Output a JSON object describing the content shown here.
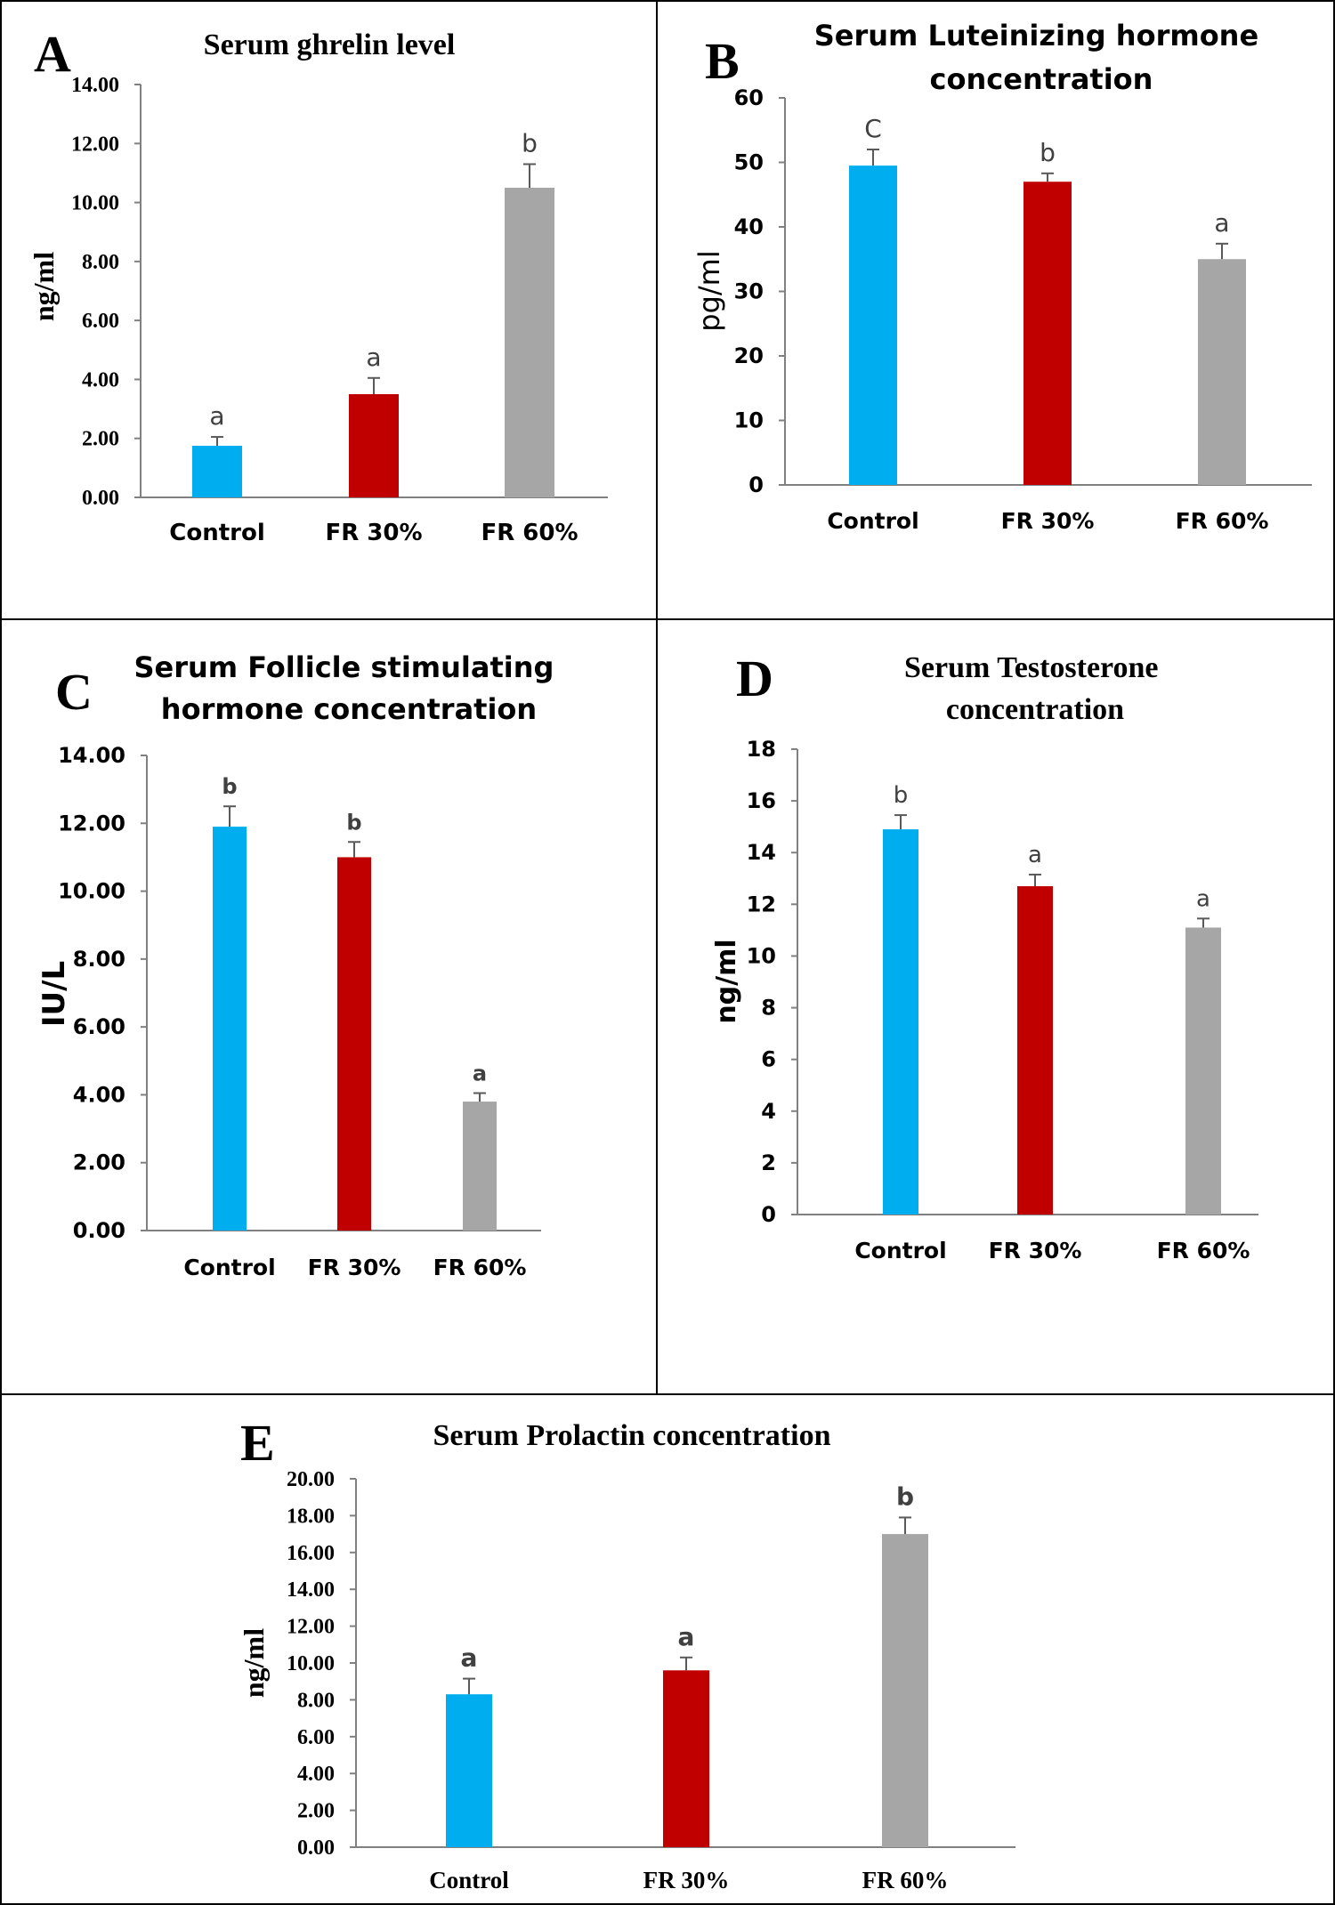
{
  "colors": {
    "control": "#00AEEF",
    "fr30": "#C00000",
    "fr60": "#A6A6A6",
    "axis": "#808080",
    "text": "#000000",
    "sig": "#404040",
    "border": "#000000"
  },
  "chart_data": [
    {
      "panel": "A",
      "type": "bar",
      "title": "Serum ghrelin level",
      "ylabel": "ng/ml",
      "categories": [
        "Control",
        "FR 30%",
        "FR 60%"
      ],
      "values": [
        1.75,
        3.5,
        10.5
      ],
      "errors": [
        0.3,
        0.55,
        0.8
      ],
      "significance": [
        "a",
        "a",
        "b"
      ],
      "ylim": [
        0,
        14
      ],
      "yticks": [
        "0.00",
        "2.00",
        "4.00",
        "6.00",
        "8.00",
        "10.00",
        "12.00",
        "14.00"
      ]
    },
    {
      "panel": "B",
      "type": "bar",
      "title": "Serum Luteinizing hormone concentration",
      "ylabel": "pg/ml",
      "categories": [
        "Control",
        "FR 30%",
        "FR 60%"
      ],
      "values": [
        49.5,
        47.0,
        35.0
      ],
      "errors": [
        2.5,
        1.3,
        2.4
      ],
      "significance": [
        "C",
        "b",
        "a"
      ],
      "ylim": [
        0,
        60
      ],
      "yticks": [
        "0",
        "10",
        "20",
        "30",
        "40",
        "50",
        "60"
      ]
    },
    {
      "panel": "C",
      "type": "bar",
      "title": "Serum Follicle stimulating hormone concentration",
      "ylabel": "IU/L",
      "categories": [
        "Control",
        "FR 30%",
        "FR 60%"
      ],
      "values": [
        11.9,
        11.0,
        3.8
      ],
      "errors": [
        0.6,
        0.45,
        0.25
      ],
      "significance": [
        "b",
        "b",
        "a"
      ],
      "ylim": [
        0,
        14
      ],
      "yticks": [
        "0.00",
        "2.00",
        "4.00",
        "6.00",
        "8.00",
        "10.00",
        "12.00",
        "14.00"
      ]
    },
    {
      "panel": "D",
      "type": "bar",
      "title": "Serum Testosterone concentration",
      "ylabel": "ng/ml",
      "categories": [
        "Control",
        "FR 30%",
        "FR 60%"
      ],
      "values": [
        14.9,
        12.7,
        11.1
      ],
      "errors": [
        0.55,
        0.45,
        0.35
      ],
      "significance": [
        "b",
        "a",
        "a"
      ],
      "ylim": [
        0,
        18
      ],
      "yticks": [
        "0",
        "2",
        "4",
        "6",
        "8",
        "10",
        "12",
        "14",
        "16",
        "18"
      ]
    },
    {
      "panel": "E",
      "type": "bar",
      "title": "Serum Prolactin concentration",
      "ylabel": "ng/ml",
      "categories": [
        "Control",
        "FR 30%",
        "FR 60%"
      ],
      "values": [
        8.3,
        9.6,
        17.0
      ],
      "errors": [
        0.85,
        0.7,
        0.9
      ],
      "significance": [
        "a",
        "a",
        "b"
      ],
      "ylim": [
        0,
        20
      ],
      "yticks": [
        "0.00",
        "2.00",
        "4.00",
        "6.00",
        "8.00",
        "10.00",
        "12.00",
        "14.00",
        "16.00",
        "18.00",
        "20.00"
      ]
    }
  ]
}
